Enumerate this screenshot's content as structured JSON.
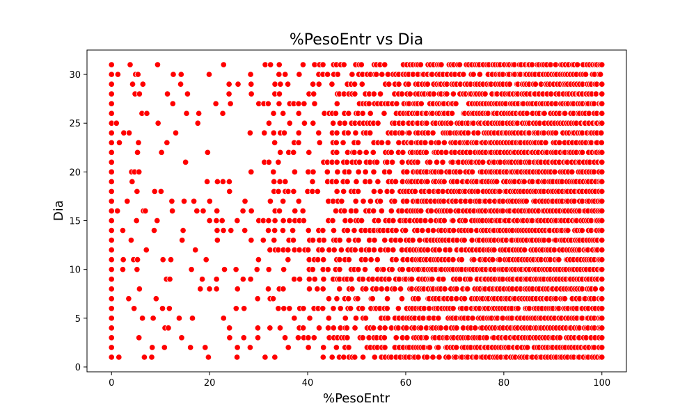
{
  "chart_data": {
    "type": "scatter",
    "title": "%PesoEntr vs Dia",
    "xlabel": "%PesoEntr",
    "ylabel": "Dia",
    "xlim": [
      -5,
      105
    ],
    "ylim": [
      -0.5,
      32.5
    ],
    "xticks": [
      0,
      20,
      40,
      60,
      80,
      100
    ],
    "yticks": [
      0,
      5,
      10,
      15,
      20,
      25,
      30
    ],
    "grid": false,
    "marker_color": "#ff0000",
    "marker_edge_color": "#ffffff",
    "y_values": [
      1,
      2,
      3,
      4,
      5,
      6,
      7,
      8,
      9,
      10,
      11,
      12,
      13,
      14,
      15,
      16,
      17,
      18,
      19,
      20,
      21,
      22,
      23,
      24,
      25,
      26,
      27,
      28,
      29,
      30,
      31
    ],
    "x_range": [
      0,
      100
    ],
    "sparse_x_points": [
      [
        0,
        1
      ],
      [
        0,
        2
      ],
      [
        0,
        3
      ],
      [
        0,
        4
      ],
      [
        0,
        5
      ],
      [
        0,
        6
      ],
      [
        0,
        7
      ],
      [
        0,
        8
      ],
      [
        0,
        9
      ],
      [
        0,
        10
      ],
      [
        0,
        11
      ],
      [
        0,
        12
      ],
      [
        0,
        13
      ],
      [
        0,
        14
      ],
      [
        0,
        15
      ],
      [
        0,
        16
      ],
      [
        0,
        17
      ],
      [
        0,
        18
      ],
      [
        0,
        19
      ],
      [
        0,
        20
      ],
      [
        0,
        21
      ],
      [
        0,
        22
      ],
      [
        0,
        23
      ],
      [
        0,
        24
      ],
      [
        0,
        25
      ],
      [
        0,
        26
      ],
      [
        0,
        27
      ],
      [
        0,
        28
      ],
      [
        0,
        29
      ],
      [
        0,
        30
      ],
      [
        0,
        31
      ],
      [
        1.5,
        1
      ],
      [
        1.2,
        16
      ],
      [
        1.6,
        23
      ],
      [
        1,
        25
      ],
      [
        1.3,
        30
      ],
      [
        2.3,
        10
      ],
      [
        2.4,
        11
      ],
      [
        2.3,
        14
      ],
      [
        2.5,
        24
      ],
      [
        3.2,
        17
      ],
      [
        3.5,
        7
      ],
      [
        3.6,
        24
      ],
      [
        3.8,
        31
      ],
      [
        4,
        13
      ],
      [
        4.1,
        20
      ],
      [
        4.2,
        19
      ],
      [
        4.3,
        29
      ],
      [
        4.6,
        6
      ],
      [
        4.5,
        11
      ],
      [
        4.7,
        20
      ],
      [
        4.8,
        28
      ],
      [
        4.9,
        30
      ],
      [
        5.2,
        10
      ],
      [
        5.3,
        11
      ],
      [
        5.1,
        15
      ],
      [
        5.2,
        18
      ],
      [
        5.3,
        22
      ],
      [
        5.4,
        30
      ],
      [
        5.6,
        3
      ],
      [
        5.7,
        8
      ],
      [
        5.6,
        20
      ],
      [
        5.5,
        23
      ],
      [
        5.7,
        28
      ],
      [
        6.3,
        5
      ],
      [
        6.5,
        16
      ],
      [
        6.2,
        26
      ],
      [
        6.4,
        29
      ],
      [
        7.1,
        12
      ],
      [
        7.2,
        26
      ],
      [
        6.9,
        16
      ],
      [
        6.7,
        1
      ],
      [
        8.2,
        1
      ],
      [
        8.3,
        2
      ],
      [
        8.5,
        5
      ],
      [
        8.7,
        14
      ],
      [
        8.8,
        18
      ],
      [
        9.1,
        7
      ],
      [
        9.3,
        15
      ],
      [
        9.5,
        25
      ],
      [
        9.4,
        31
      ],
      [
        10.1,
        18
      ],
      [
        10.2,
        22
      ],
      [
        10.4,
        6
      ],
      [
        10.5,
        11
      ],
      [
        10.8,
        2
      ],
      [
        10.9,
        4
      ],
      [
        11.2,
        9
      ],
      [
        11.3,
        23
      ],
      [
        11.4,
        28
      ],
      [
        11.6,
        4
      ],
      [
        11.8,
        6
      ],
      [
        11.9,
        9
      ],
      [
        12.1,
        11
      ],
      [
        12.3,
        17
      ],
      [
        12.4,
        16
      ],
      [
        12.5,
        27
      ],
      [
        12.6,
        30
      ],
      [
        13.1,
        24
      ],
      [
        13.8,
        5
      ],
      [
        14.1,
        29
      ],
      [
        14.2,
        30
      ],
      [
        14.3,
        3
      ],
      [
        14.4,
        13
      ],
      [
        14.6,
        14
      ],
      [
        14.8,
        17
      ],
      [
        15.1,
        21
      ],
      [
        15.3,
        26
      ],
      [
        15.5,
        28
      ],
      [
        16.1,
        2
      ],
      [
        16.3,
        10
      ],
      [
        16.5,
        5
      ],
      [
        16.8,
        17
      ],
      [
        17.1,
        12
      ],
      [
        17.4,
        16
      ],
      [
        17.6,
        25
      ],
      [
        17.8,
        26
      ],
      [
        18.1,
        8
      ],
      [
        18.5,
        9
      ],
      [
        18.7,
        16
      ],
      [
        19.1,
        2
      ],
      [
        19.3,
        11
      ],
      [
        19.5,
        19
      ],
      [
        19.6,
        22
      ]
    ]
  }
}
